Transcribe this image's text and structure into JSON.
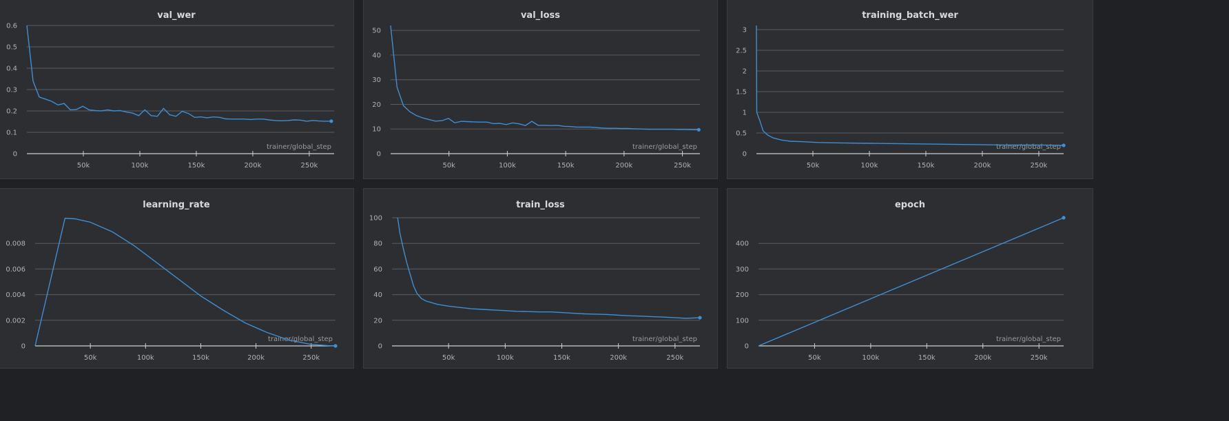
{
  "chart_data": [
    {
      "id": "val_wer",
      "type": "line",
      "title": "val_wer",
      "xlabel": "trainer/global_step",
      "ylabel": "",
      "xlim": [
        0,
        272000
      ],
      "ylim": [
        0,
        0.6
      ],
      "yticks": [
        0,
        0.1,
        0.2,
        0.3,
        0.4,
        0.5,
        0.6
      ],
      "ytick_labels": [
        "0",
        "0.1",
        "0.2",
        "0.3",
        "0.4",
        "0.5",
        "0.6"
      ],
      "xticks": [
        50000,
        100000,
        150000,
        200000,
        250000
      ],
      "xtick_labels": [
        "50k",
        "100k",
        "150k",
        "200k",
        "250k"
      ],
      "grid": true,
      "x": [
        0,
        5500,
        11000,
        16500,
        22000,
        27500,
        33000,
        38500,
        44000,
        49500,
        55000,
        60500,
        66000,
        71500,
        77000,
        82500,
        88000,
        93500,
        99000,
        104500,
        110000,
        115500,
        121000,
        126500,
        132000,
        137500,
        143000,
        148500,
        154000,
        159500,
        165000,
        170500,
        176000,
        181500,
        187000,
        192500,
        198000,
        203500,
        209000,
        214500,
        220000,
        225500,
        231000,
        236500,
        242000,
        247500,
        253000,
        258500,
        264000,
        269500
      ],
      "y": [
        0.6,
        0.34,
        0.265,
        0.255,
        0.245,
        0.228,
        0.235,
        0.205,
        0.207,
        0.222,
        0.205,
        0.202,
        0.2,
        0.205,
        0.2,
        0.202,
        0.195,
        0.19,
        0.178,
        0.205,
        0.178,
        0.175,
        0.212,
        0.182,
        0.175,
        0.198,
        0.188,
        0.17,
        0.172,
        0.168,
        0.172,
        0.17,
        0.163,
        0.162,
        0.162,
        0.162,
        0.16,
        0.162,
        0.162,
        0.158,
        0.155,
        0.154,
        0.155,
        0.158,
        0.157,
        0.152,
        0.155,
        0.153,
        0.152,
        0.152
      ]
    },
    {
      "id": "val_loss",
      "type": "line",
      "title": "val_loss",
      "xlabel": "trainer/global_step",
      "ylabel": "",
      "xlim": [
        0,
        265000
      ],
      "ylim": [
        0,
        52
      ],
      "yticks": [
        0,
        10,
        20,
        30,
        40,
        50
      ],
      "ytick_labels": [
        "0",
        "10",
        "20",
        "30",
        "40",
        "50"
      ],
      "xticks": [
        50000,
        100000,
        150000,
        200000,
        250000
      ],
      "xtick_labels": [
        "50k",
        "100k",
        "150k",
        "200k",
        "250k"
      ],
      "grid": true,
      "x": [
        0,
        5500,
        11000,
        16500,
        22000,
        27500,
        33000,
        38500,
        44000,
        49500,
        55000,
        60500,
        66000,
        71500,
        77000,
        82500,
        88000,
        93500,
        99000,
        104500,
        110000,
        115500,
        121000,
        126500,
        132000,
        137500,
        143000,
        148500,
        154000,
        159500,
        165000,
        170500,
        176000,
        181500,
        187000,
        192500,
        198000,
        203500,
        209000,
        214500,
        220000,
        225500,
        231000,
        236500,
        242000,
        247500,
        253000,
        258500,
        264000
      ],
      "y": [
        52,
        27,
        19.5,
        17,
        15.5,
        14.5,
        13.8,
        13.2,
        13.4,
        14.3,
        12.5,
        13.1,
        13.0,
        12.9,
        12.8,
        12.8,
        12.2,
        12.3,
        11.8,
        12.5,
        12.1,
        11.4,
        13.1,
        11.5,
        11.5,
        11.4,
        11.5,
        11.1,
        11.0,
        10.8,
        10.8,
        10.8,
        10.6,
        10.4,
        10.3,
        10.3,
        10.2,
        10.2,
        10.1,
        10.0,
        9.9,
        9.9,
        9.9,
        9.9,
        9.9,
        9.8,
        9.8,
        9.7,
        9.7
      ]
    },
    {
      "id": "training_batch_wer",
      "type": "line",
      "title": "training_batch_wer",
      "xlabel": "trainer/global_step",
      "ylabel": "",
      "xlim": [
        0,
        272000
      ],
      "ylim": [
        0,
        3.1
      ],
      "yticks": [
        0,
        0.5,
        1,
        1.5,
        2,
        2.5,
        3
      ],
      "ytick_labels": [
        "0",
        "0.5",
        "1",
        "1.5",
        "2",
        "2.5",
        "3"
      ],
      "xticks": [
        50000,
        100000,
        150000,
        200000,
        250000
      ],
      "xtick_labels": [
        "50k",
        "100k",
        "150k",
        "200k",
        "250k"
      ],
      "grid": true,
      "x": [
        0,
        300,
        1000,
        3000,
        6000,
        10000,
        15000,
        22000,
        30000,
        40000,
        55000,
        75000,
        100000,
        130000,
        160000,
        190000,
        220000,
        250000,
        272000
      ],
      "y": [
        3.1,
        1.0,
        0.95,
        0.8,
        0.55,
        0.45,
        0.38,
        0.33,
        0.3,
        0.29,
        0.27,
        0.26,
        0.25,
        0.24,
        0.23,
        0.22,
        0.21,
        0.21,
        0.2
      ]
    },
    {
      "id": "learning_rate",
      "type": "line",
      "title": "learning_rate",
      "xlabel": "trainer/global_step",
      "ylabel": "",
      "xlim": [
        0,
        272000
      ],
      "ylim": [
        0,
        0.01
      ],
      "yticks": [
        0,
        0.002,
        0.004,
        0.006,
        0.008
      ],
      "ytick_labels": [
        "0",
        "0.002",
        "0.004",
        "0.006",
        "0.008"
      ],
      "xticks": [
        50000,
        100000,
        150000,
        200000,
        250000
      ],
      "xtick_labels": [
        "50k",
        "100k",
        "150k",
        "200k",
        "250k"
      ],
      "grid": true,
      "x": [
        0,
        27000,
        36000,
        50000,
        70000,
        90000,
        110000,
        130000,
        150000,
        170000,
        190000,
        210000,
        230000,
        250000,
        265000,
        272000
      ],
      "y": [
        0,
        0.00995,
        0.00992,
        0.00965,
        0.0089,
        0.0078,
        0.0065,
        0.0052,
        0.0039,
        0.0028,
        0.0018,
        0.00105,
        0.00045,
        0.00012,
        2e-05,
        0
      ]
    },
    {
      "id": "train_loss",
      "type": "line",
      "title": "train_loss",
      "xlabel": "trainer/global_step",
      "ylabel": "",
      "xlim": [
        0,
        272000
      ],
      "ylim": [
        0,
        100
      ],
      "yticks": [
        0,
        20,
        40,
        60,
        80,
        100
      ],
      "ytick_labels": [
        "0",
        "20",
        "40",
        "60",
        "80",
        "100"
      ],
      "xticks": [
        50000,
        100000,
        150000,
        200000,
        250000
      ],
      "xtick_labels": [
        "50k",
        "100k",
        "150k",
        "200k",
        "250k"
      ],
      "grid": true,
      "x": [
        5000,
        7000,
        10000,
        13000,
        16000,
        19000,
        22000,
        26000,
        30000,
        40000,
        50000,
        60000,
        70000,
        80000,
        90000,
        100000,
        110000,
        120000,
        130000,
        140000,
        150000,
        160000,
        170000,
        180000,
        190000,
        200000,
        210000,
        220000,
        230000,
        240000,
        250000,
        260000,
        272000
      ],
      "y": [
        100,
        88,
        76,
        65,
        56,
        47,
        41,
        37,
        35,
        32.5,
        31,
        30,
        29,
        28.5,
        28,
        27.5,
        27,
        26.8,
        26.5,
        26.5,
        26,
        25.5,
        25,
        24.8,
        24.5,
        24,
        23.5,
        23.2,
        22.8,
        22.5,
        22,
        21.5,
        22
      ]
    },
    {
      "id": "epoch",
      "type": "line",
      "title": "epoch",
      "xlabel": "trainer/global_step",
      "ylabel": "",
      "xlim": [
        0,
        272000
      ],
      "ylim": [
        0,
        500
      ],
      "yticks": [
        0,
        100,
        200,
        300,
        400
      ],
      "ytick_labels": [
        "0",
        "100",
        "200",
        "300",
        "400"
      ],
      "xticks": [
        50000,
        100000,
        150000,
        200000,
        250000
      ],
      "xtick_labels": [
        "50k",
        "100k",
        "150k",
        "200k",
        "250k"
      ],
      "grid": true,
      "x": [
        0,
        272000
      ],
      "y": [
        0,
        500
      ]
    }
  ]
}
